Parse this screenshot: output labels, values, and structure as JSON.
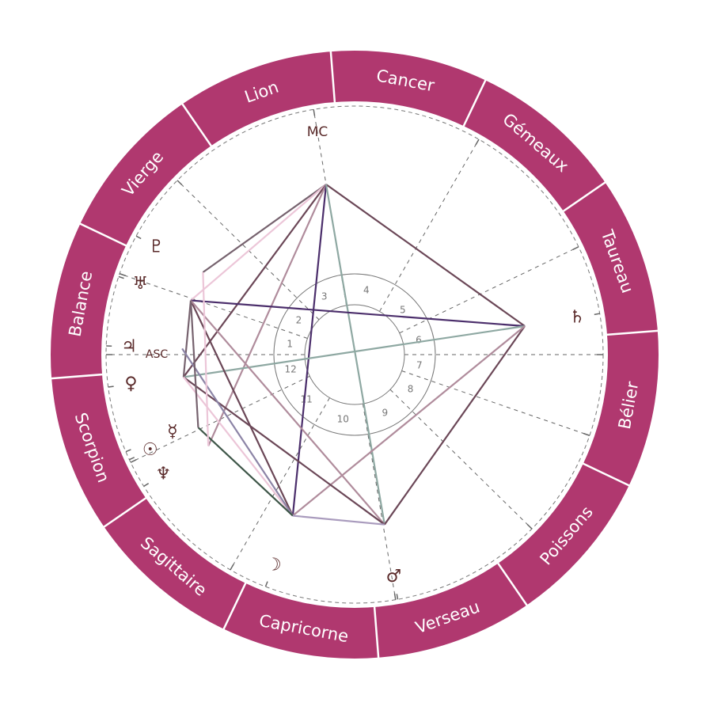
{
  "chart": {
    "ring_color": "#b0386f",
    "glyph_color": "#5a2a2a",
    "signs": [
      {
        "name": "Bélier"
      },
      {
        "name": "Taureau"
      },
      {
        "name": "Gémeaux"
      },
      {
        "name": "Cancer"
      },
      {
        "name": "Lion"
      },
      {
        "name": "Vierge"
      },
      {
        "name": "Balance"
      },
      {
        "name": "Scorpion"
      },
      {
        "name": "Sagittaire"
      },
      {
        "name": "Capricorne"
      },
      {
        "name": "Verseau"
      },
      {
        "name": "Poissons"
      }
    ],
    "angles": {
      "asc": {
        "label": "ASC",
        "longitude": 205.5
      },
      "mc": {
        "label": "MC",
        "longitude": 125
      }
    },
    "house_cusps": [
      205.5,
      186.5,
      161,
      125,
      85.5,
      51.2,
      25.5,
      6.5,
      341,
      305,
      265.5,
      231.2
    ],
    "house_labels": [
      "1",
      "2",
      "3",
      "4",
      "5",
      "6",
      "7",
      "8",
      "9",
      "10",
      "11",
      "12"
    ],
    "planets": [
      {
        "id": "pluto",
        "glyph": "♇",
        "icon": "pluto-icon",
        "longitude": 177
      },
      {
        "id": "uranus",
        "glyph": "♅",
        "icon": "uranus-icon",
        "longitude": 187.2
      },
      {
        "id": "jupiter",
        "glyph": "♃",
        "icon": "jupiter-icon",
        "longitude": 203.5
      },
      {
        "id": "venus",
        "glyph": "♀",
        "icon": "venus-icon",
        "longitude": 213
      },
      {
        "id": "mercury",
        "glyph": "☿",
        "icon": "mercury-icon",
        "longitude": 228.5
      },
      {
        "id": "sun",
        "glyph": "☉",
        "icon": "sun-icon",
        "longitude": 230.5
      },
      {
        "id": "neptune",
        "glyph": "♆",
        "icon": "neptune-icon",
        "longitude": 237.5
      },
      {
        "id": "moon",
        "glyph": "☽",
        "icon": "moon-icon",
        "longitude": 274.5
      },
      {
        "id": "mars",
        "glyph": "♂",
        "icon": "mars-icon",
        "longitude": 305.5
      },
      {
        "id": "saturn",
        "glyph": "♄",
        "icon": "saturn-icon",
        "longitude": 35
      }
    ],
    "aspects": [
      {
        "from": "mc",
        "to": "saturn",
        "color": "#6b4757"
      },
      {
        "from": "mc",
        "to": "pluto",
        "color": "#76626e"
      },
      {
        "from": "mc",
        "to": "uranus",
        "color": "#ecc6d8"
      },
      {
        "from": "mc",
        "to": "venus",
        "color": "#6b4757"
      },
      {
        "from": "mc",
        "to": "neptune",
        "color": "#b08c9c"
      },
      {
        "from": "mc",
        "to": "moon",
        "color": "#4b2e6b"
      },
      {
        "from": "mc",
        "to": "mars",
        "color": "#8ea8a2"
      },
      {
        "from": "uranus",
        "to": "saturn",
        "color": "#4b2e6b"
      },
      {
        "from": "venus",
        "to": "saturn",
        "color": "#8ea8a2"
      },
      {
        "from": "saturn",
        "to": "mars",
        "color": "#6b4757"
      },
      {
        "from": "saturn",
        "to": "moon",
        "color": "#b08c9c"
      },
      {
        "from": "uranus",
        "to": "venus",
        "color": "#76626e"
      },
      {
        "from": "uranus",
        "to": "moon",
        "color": "#6b4757"
      },
      {
        "from": "uranus",
        "to": "mars",
        "color": "#b08c9c"
      },
      {
        "from": "venus",
        "to": "mars",
        "color": "#6b4757"
      },
      {
        "from": "venus",
        "to": "moon",
        "color": "#ecc6d8"
      },
      {
        "from": "jupiter",
        "to": "moon",
        "color": "#8c84a6"
      },
      {
        "from": "sun",
        "to": "moon",
        "color": "#3e5648"
      },
      {
        "from": "moon",
        "to": "mars",
        "color": "#a99bbd"
      },
      {
        "from": "pluto",
        "to": "neptune",
        "color": "#ecc6d8"
      },
      {
        "from": "uranus",
        "to": "sun",
        "color": "#76626e"
      }
    ]
  }
}
